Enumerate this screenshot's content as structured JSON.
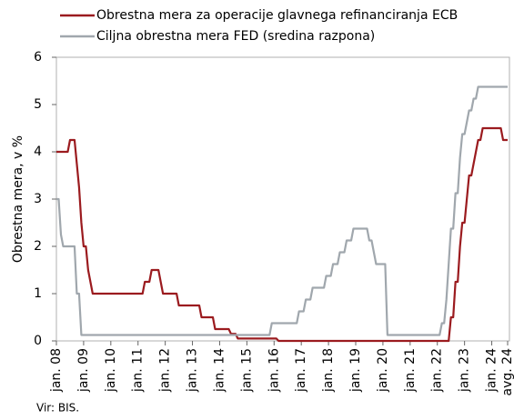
{
  "chart_data": {
    "type": "line",
    "legend_items": [
      "Obrestna mera za operacije glavnega refinanciranja ECB",
      "Ciljna obrestna mera FED (sredina razpona)"
    ],
    "ylabel": "Obrestna mera, v %",
    "source": "Vir: BIS.",
    "categories": [
      "jan. 08",
      null,
      null,
      null,
      null,
      null,
      null,
      null,
      null,
      null,
      null,
      null,
      "jan. 09",
      null,
      null,
      null,
      null,
      null,
      null,
      null,
      null,
      null,
      null,
      null,
      "jan. 10",
      null,
      null,
      null,
      null,
      null,
      null,
      null,
      null,
      null,
      null,
      null,
      "jan. 11",
      null,
      null,
      null,
      null,
      null,
      null,
      null,
      null,
      null,
      null,
      null,
      "jan. 12",
      null,
      null,
      null,
      null,
      null,
      null,
      null,
      null,
      null,
      null,
      null,
      "jan. 13",
      null,
      null,
      null,
      null,
      null,
      null,
      null,
      null,
      null,
      null,
      null,
      "jan. 14",
      null,
      null,
      null,
      null,
      null,
      null,
      null,
      null,
      null,
      null,
      null,
      "jan. 15",
      null,
      null,
      null,
      null,
      null,
      null,
      null,
      null,
      null,
      null,
      null,
      "jan. 16",
      null,
      null,
      null,
      null,
      null,
      null,
      null,
      null,
      null,
      null,
      null,
      "jan. 17",
      null,
      null,
      null,
      null,
      null,
      null,
      null,
      null,
      null,
      null,
      null,
      "jan. 18",
      null,
      null,
      null,
      null,
      null,
      null,
      null,
      null,
      null,
      null,
      null,
      "jan. 19",
      null,
      null,
      null,
      null,
      null,
      null,
      null,
      null,
      null,
      null,
      null,
      "jan. 20",
      null,
      null,
      null,
      null,
      null,
      null,
      null,
      null,
      null,
      null,
      null,
      "jan. 21",
      null,
      null,
      null,
      null,
      null,
      null,
      null,
      null,
      null,
      null,
      null,
      "jan. 22",
      null,
      null,
      null,
      null,
      null,
      null,
      null,
      null,
      null,
      null,
      null,
      "jan. 23",
      null,
      null,
      null,
      null,
      null,
      null,
      null,
      null,
      null,
      null,
      null,
      "jan. 24",
      null,
      null,
      null,
      null,
      null,
      null,
      "avg. 24"
    ],
    "series": [
      {
        "name": "Obrestna mera za operacije glavnega refinanciranja ECB",
        "color": "#9b1b1f",
        "values": [
          4,
          4,
          4,
          4,
          4,
          4,
          4.25,
          4.25,
          4.25,
          3.75,
          3.25,
          2.5,
          2,
          2,
          1.5,
          1.25,
          1,
          1,
          1,
          1,
          1,
          1,
          1,
          1,
          1,
          1,
          1,
          1,
          1,
          1,
          1,
          1,
          1,
          1,
          1,
          1,
          1,
          1,
          1,
          1.25,
          1.25,
          1.25,
          1.5,
          1.5,
          1.5,
          1.5,
          1.25,
          1,
          1,
          1,
          1,
          1,
          1,
          1,
          0.75,
          0.75,
          0.75,
          0.75,
          0.75,
          0.75,
          0.75,
          0.75,
          0.75,
          0.75,
          0.5,
          0.5,
          0.5,
          0.5,
          0.5,
          0.5,
          0.25,
          0.25,
          0.25,
          0.25,
          0.25,
          0.25,
          0.25,
          0.15,
          0.15,
          0.15,
          0.05,
          0.05,
          0.05,
          0.05,
          0.05,
          0.05,
          0.05,
          0.05,
          0.05,
          0.05,
          0.05,
          0.05,
          0.05,
          0.05,
          0.05,
          0.05,
          0.05,
          0.05,
          0,
          0,
          0,
          0,
          0,
          0,
          0,
          0,
          0,
          0,
          0,
          0,
          0,
          0,
          0,
          0,
          0,
          0,
          0,
          0,
          0,
          0,
          0,
          0,
          0,
          0,
          0,
          0,
          0,
          0,
          0,
          0,
          0,
          0,
          0,
          0,
          0,
          0,
          0,
          0,
          0,
          0,
          0,
          0,
          0,
          0,
          0,
          0,
          0,
          0,
          0,
          0,
          0,
          0,
          0,
          0,
          0,
          0,
          0,
          0,
          0,
          0,
          0,
          0,
          0,
          0,
          0,
          0,
          0,
          0,
          0,
          0,
          0,
          0,
          0,
          0,
          0.5,
          0.5,
          1.25,
          1.25,
          2,
          2.5,
          2.5,
          3,
          3.5,
          3.5,
          3.75,
          4,
          4.25,
          4.25,
          4.5,
          4.5,
          4.5,
          4.5,
          4.5,
          4.5,
          4.5,
          4.5,
          4.5,
          4.25,
          4.25,
          4.25
        ]
      },
      {
        "name": "Ciljna obrestna mera FED (sredina razpona)",
        "color": "#a0a7ad",
        "values": [
          3,
          3,
          2.25,
          2,
          2,
          2,
          2,
          2,
          2,
          1,
          1,
          0.125,
          0.125,
          0.125,
          0.125,
          0.125,
          0.125,
          0.125,
          0.125,
          0.125,
          0.125,
          0.125,
          0.125,
          0.125,
          0.125,
          0.125,
          0.125,
          0.125,
          0.125,
          0.125,
          0.125,
          0.125,
          0.125,
          0.125,
          0.125,
          0.125,
          0.125,
          0.125,
          0.125,
          0.125,
          0.125,
          0.125,
          0.125,
          0.125,
          0.125,
          0.125,
          0.125,
          0.125,
          0.125,
          0.125,
          0.125,
          0.125,
          0.125,
          0.125,
          0.125,
          0.125,
          0.125,
          0.125,
          0.125,
          0.125,
          0.125,
          0.125,
          0.125,
          0.125,
          0.125,
          0.125,
          0.125,
          0.125,
          0.125,
          0.125,
          0.125,
          0.125,
          0.125,
          0.125,
          0.125,
          0.125,
          0.125,
          0.125,
          0.125,
          0.125,
          0.125,
          0.125,
          0.125,
          0.125,
          0.125,
          0.125,
          0.125,
          0.125,
          0.125,
          0.125,
          0.125,
          0.125,
          0.125,
          0.125,
          0.125,
          0.375,
          0.375,
          0.375,
          0.375,
          0.375,
          0.375,
          0.375,
          0.375,
          0.375,
          0.375,
          0.375,
          0.375,
          0.625,
          0.625,
          0.625,
          0.875,
          0.875,
          0.875,
          1.125,
          1.125,
          1.125,
          1.125,
          1.125,
          1.125,
          1.375,
          1.375,
          1.375,
          1.625,
          1.625,
          1.625,
          1.875,
          1.875,
          1.875,
          2.125,
          2.125,
          2.125,
          2.375,
          2.375,
          2.375,
          2.375,
          2.375,
          2.375,
          2.375,
          2.125,
          2.125,
          1.875,
          1.625,
          1.625,
          1.625,
          1.625,
          1.625,
          0.125,
          0.125,
          0.125,
          0.125,
          0.125,
          0.125,
          0.125,
          0.125,
          0.125,
          0.125,
          0.125,
          0.125,
          0.125,
          0.125,
          0.125,
          0.125,
          0.125,
          0.125,
          0.125,
          0.125,
          0.125,
          0.125,
          0.125,
          0.125,
          0.375,
          0.375,
          0.875,
          1.625,
          2.375,
          2.375,
          3.125,
          3.125,
          3.875,
          4.375,
          4.375,
          4.625,
          4.875,
          4.875,
          5.125,
          5.125,
          5.375,
          5.375,
          5.375,
          5.375,
          5.375,
          5.375,
          5.375,
          5.375,
          5.375,
          5.375,
          5.375,
          5.375,
          5.375,
          5.375
        ]
      }
    ],
    "ylim": [
      0,
      6
    ],
    "yticks": [
      0,
      1,
      2,
      3,
      4,
      5,
      6
    ],
    "grid": false
  }
}
